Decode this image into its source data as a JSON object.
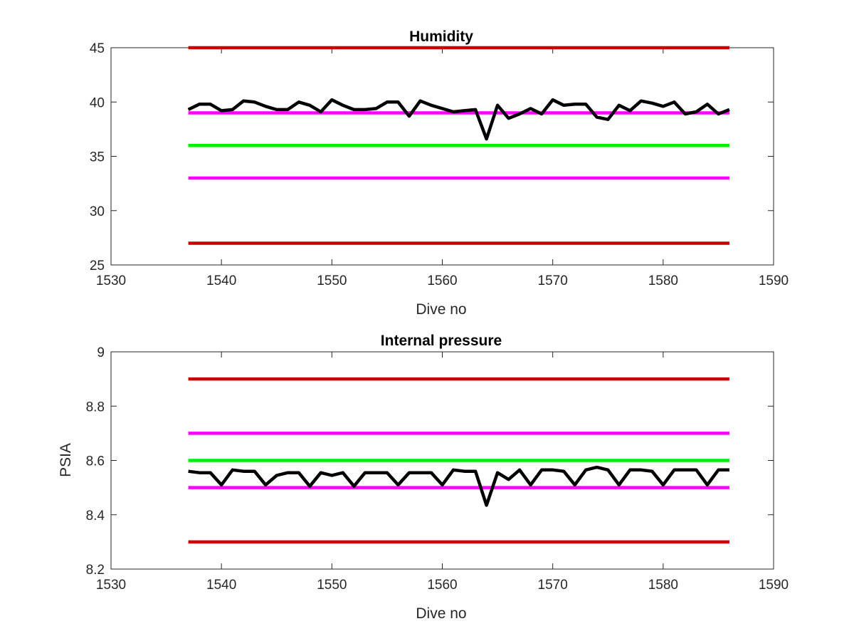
{
  "chart_data": [
    {
      "type": "line",
      "title": "Humidity",
      "xlabel": "Dive no",
      "ylabel": "",
      "xlim": [
        1530,
        1590
      ],
      "ylim": [
        25,
        45
      ],
      "xticks": [
        "1530",
        "1540",
        "1550",
        "1560",
        "1570",
        "1580",
        "1590"
      ],
      "yticks": [
        "25",
        "30",
        "35",
        "40",
        "45"
      ],
      "grid": false,
      "reference_lines": [
        {
          "y": 45,
          "x": [
            1537,
            1586
          ],
          "color": "#cc0000"
        },
        {
          "y": 39,
          "x": [
            1537,
            1586
          ],
          "color": "#ff00ff"
        },
        {
          "y": 36,
          "x": [
            1537,
            1586
          ],
          "color": "#00ee00"
        },
        {
          "y": 33,
          "x": [
            1537,
            1586
          ],
          "color": "#ff00ff"
        },
        {
          "y": 27,
          "x": [
            1537,
            1586
          ],
          "color": "#cc0000"
        }
      ],
      "series": [
        {
          "color": "#000000",
          "x": [
            1537,
            1538,
            1539,
            1540,
            1541,
            1542,
            1543,
            1544,
            1545,
            1546,
            1547,
            1548,
            1549,
            1550,
            1551,
            1552,
            1553,
            1554,
            1555,
            1556,
            1557,
            1558,
            1559,
            1560,
            1561,
            1562,
            1563,
            1564,
            1565,
            1566,
            1567,
            1568,
            1569,
            1570,
            1571,
            1572,
            1573,
            1574,
            1575,
            1576,
            1577,
            1578,
            1579,
            1580,
            1581,
            1582,
            1583,
            1584,
            1585,
            1586
          ],
          "values": [
            39.3,
            39.8,
            39.8,
            39.2,
            39.3,
            40.1,
            40.0,
            39.6,
            39.3,
            39.3,
            40.0,
            39.7,
            39.1,
            40.2,
            39.7,
            39.3,
            39.3,
            39.4,
            40.0,
            40.0,
            38.7,
            40.1,
            39.7,
            39.4,
            39.1,
            39.2,
            39.3,
            36.6,
            39.7,
            38.5,
            38.9,
            39.4,
            38.9,
            40.2,
            39.7,
            39.8,
            39.8,
            38.6,
            38.4,
            39.7,
            39.2,
            40.1,
            39.9,
            39.6,
            40.0,
            38.9,
            39.1,
            39.8,
            38.9,
            39.3
          ]
        }
      ]
    },
    {
      "type": "line",
      "title": "Internal pressure",
      "xlabel": "Dive no",
      "ylabel": "PSIA",
      "xlim": [
        1530,
        1590
      ],
      "ylim": [
        8.2,
        9.0
      ],
      "xticks": [
        "1530",
        "1540",
        "1550",
        "1560",
        "1570",
        "1580",
        "1590"
      ],
      "yticks": [
        "8.2",
        "8.4",
        "8.6",
        "8.8",
        "9"
      ],
      "grid": false,
      "reference_lines": [
        {
          "y": 8.9,
          "x": [
            1537,
            1586
          ],
          "color": "#cc0000"
        },
        {
          "y": 8.7,
          "x": [
            1537,
            1586
          ],
          "color": "#ff00ff"
        },
        {
          "y": 8.6,
          "x": [
            1537,
            1586
          ],
          "color": "#00ee00"
        },
        {
          "y": 8.5,
          "x": [
            1537,
            1586
          ],
          "color": "#ff00ff"
        },
        {
          "y": 8.3,
          "x": [
            1537,
            1586
          ],
          "color": "#cc0000"
        }
      ],
      "series": [
        {
          "color": "#000000",
          "x": [
            1537,
            1538,
            1539,
            1540,
            1541,
            1542,
            1543,
            1544,
            1545,
            1546,
            1547,
            1548,
            1549,
            1550,
            1551,
            1552,
            1553,
            1554,
            1555,
            1556,
            1557,
            1558,
            1559,
            1560,
            1561,
            1562,
            1563,
            1564,
            1565,
            1566,
            1567,
            1568,
            1569,
            1570,
            1571,
            1572,
            1573,
            1574,
            1575,
            1576,
            1577,
            1578,
            1579,
            1580,
            1581,
            1582,
            1583,
            1584,
            1585,
            1586
          ],
          "values": [
            8.56,
            8.555,
            8.555,
            8.51,
            8.565,
            8.56,
            8.56,
            8.51,
            8.545,
            8.555,
            8.555,
            8.505,
            8.555,
            8.545,
            8.555,
            8.505,
            8.555,
            8.555,
            8.555,
            8.51,
            8.555,
            8.555,
            8.555,
            8.51,
            8.565,
            8.56,
            8.56,
            8.435,
            8.555,
            8.53,
            8.565,
            8.51,
            8.565,
            8.565,
            8.56,
            8.51,
            8.565,
            8.575,
            8.565,
            8.51,
            8.565,
            8.565,
            8.56,
            8.51,
            8.565,
            8.565,
            8.565,
            8.51,
            8.565,
            8.565
          ]
        }
      ]
    }
  ]
}
